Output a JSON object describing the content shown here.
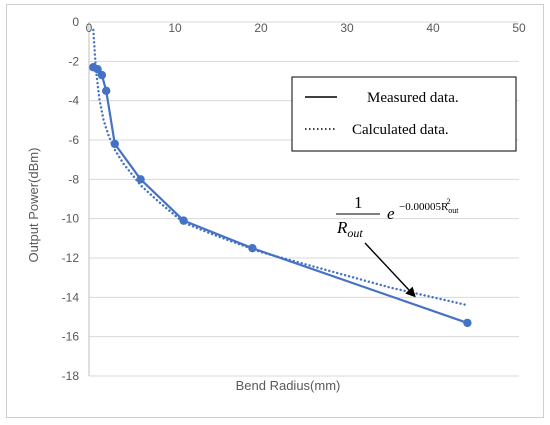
{
  "chart_data": {
    "type": "line",
    "title": "",
    "xlabel": "Bend Radius(mm)",
    "ylabel": "Output Power(dBm)",
    "xlim": [
      0,
      50
    ],
    "ylim": [
      -18,
      0
    ],
    "xticks": [
      0,
      10,
      20,
      30,
      40,
      50
    ],
    "yticks": [
      0,
      -2,
      -4,
      -6,
      -8,
      -10,
      -12,
      -14,
      -16,
      -18
    ],
    "grid": "horizontal",
    "legend_position": "top-right",
    "series": [
      {
        "name": "Measured data.",
        "style": "solid",
        "markers": true,
        "color": "#4472c4",
        "x": [
          0.5,
          1,
          1.5,
          2,
          3,
          6,
          11,
          19,
          44
        ],
        "y": [
          -2.3,
          -2.4,
          -2.7,
          -3.5,
          -6.2,
          -8.0,
          -10.1,
          -11.5,
          -15.3
        ]
      },
      {
        "name": "Calculated data.",
        "style": "dotted",
        "markers": false,
        "color": "#4472c4",
        "x": [
          0.5,
          0.8,
          1.2,
          1.7,
          2.3,
          3,
          4,
          6,
          8,
          11,
          15,
          20,
          25,
          30,
          35,
          40,
          44
        ],
        "y": [
          -0.4,
          -2.4,
          -3.9,
          -5.0,
          -5.8,
          -6.5,
          -7.2,
          -8.3,
          -9.1,
          -10.2,
          -10.9,
          -11.7,
          -12.3,
          -12.9,
          -13.5,
          -14.0,
          -14.4
        ]
      }
    ],
    "annotation": {
      "numerator": "1",
      "denominator_base": "R",
      "denominator_sub": "out",
      "exp_base": "e",
      "exponent": "−0.00005R",
      "exponent_sub": "out",
      "exponent_sup": "2",
      "arrow_to": [
        38,
        -14.0
      ]
    }
  },
  "colors": {
    "series": "#4472c4",
    "grid": "#d9d9d9",
    "axis": "#bfbfbf"
  }
}
